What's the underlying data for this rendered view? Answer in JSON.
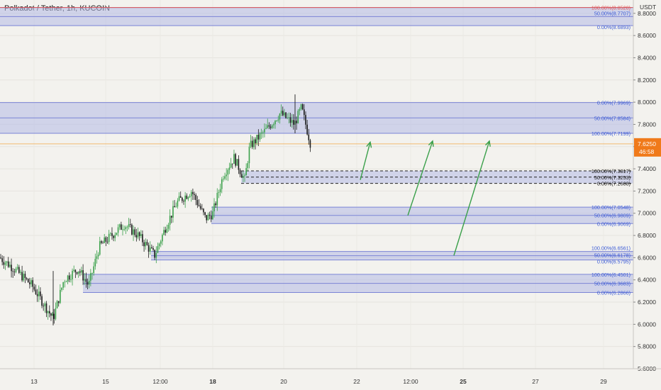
{
  "symbol_title": "Polkadot / Tether, 1h, KUCOIN",
  "axis_currency": "USDT",
  "colors": {
    "background": "#f3f2ee",
    "zone_fill": "#b3b9e6",
    "zone_line": "#7b84d6",
    "fib_text_blue": "#3b5bd6",
    "fib_text_red": "#e05656",
    "fib_text_dark": "#111111",
    "candle_up": "#3aa04a",
    "candle_down": "#1b1b1b",
    "arrow": "#3aa04a",
    "price_line": "#f2a33a",
    "price_label_bg": "#f07a1a"
  },
  "price_label": {
    "price": "7.6250",
    "countdown": "46:58"
  },
  "chart_data": {
    "type": "candlestick",
    "title": "Polkadot / Tether, 1h, KUCOIN",
    "ylabel": "USDT",
    "ylim": [
      5.6,
      8.92
    ],
    "y_ticks": [
      "8.8000",
      "8.6000",
      "8.4000",
      "8.2000",
      "8.0000",
      "7.8000",
      "7.6000",
      "7.4000",
      "7.2000",
      "7.0000",
      "6.8000",
      "6.6000",
      "6.4000",
      "6.2000",
      "6.0000",
      "5.8000",
      "5.6000"
    ],
    "x_ticks": [
      {
        "label": "13",
        "bold": false
      },
      {
        "label": "15",
        "bold": false
      },
      {
        "label": "12:00",
        "bold": false
      },
      {
        "label": "18",
        "bold": true
      },
      {
        "label": "20",
        "bold": false
      },
      {
        "label": "22",
        "bold": false
      },
      {
        "label": "12:00",
        "bold": false
      },
      {
        "label": "25",
        "bold": true
      },
      {
        "label": "27",
        "bold": false
      },
      {
        "label": "29",
        "bold": false
      }
    ],
    "last_price": 7.625,
    "zones": [
      {
        "top": 8.852,
        "bottom": 8.6893,
        "mid": 8.7707,
        "labels": [
          {
            "text": "100.00%(8.8520)",
            "color": "red"
          },
          {
            "text": "50.00%(8.7707)",
            "color": "blue"
          },
          {
            "text": "0.00%(8.6893)",
            "color": "blue"
          }
        ]
      },
      {
        "top": 7.9969,
        "bottom": 7.7199,
        "mid": 7.8584,
        "labels": [
          {
            "text": "0.00%(7.9969)",
            "color": "blue"
          },
          {
            "text": "50.00%(7.8584)",
            "color": "blue"
          },
          {
            "text": "100.00%(7.7199)",
            "color": "blue"
          }
        ]
      },
      {
        "top": 7.3817,
        "bottom": 7.2688,
        "mid": 7.3253,
        "dashed": true,
        "labels": [
          {
            "text": "100.00%(7.3817)",
            "color": "dark"
          },
          {
            "text": "50.00%(7.3253)",
            "color": "dark"
          },
          {
            "text": "0.00%(7.2688)",
            "color": "dark"
          }
        ]
      },
      {
        "top": 7.0548,
        "bottom": 6.9069,
        "mid": 6.9809,
        "labels": [
          {
            "text": "100.00%(7.0548)",
            "color": "blue"
          },
          {
            "text": "50.00%(6.9809)",
            "color": "blue"
          },
          {
            "text": "0.00%(6.9069)",
            "color": "blue"
          }
        ]
      },
      {
        "top": 6.6561,
        "bottom": 6.5795,
        "mid": 6.6178,
        "labels": [
          {
            "text": "100.00%(6.6561)",
            "color": "blue"
          },
          {
            "text": "50.00%(6.6178)",
            "color": "blue"
          },
          {
            "text": "0.00%(6.5795)",
            "color": "blue"
          }
        ]
      },
      {
        "top": 6.4501,
        "bottom": 6.2866,
        "mid": 6.3683,
        "labels": [
          {
            "text": "100.00%(6.4501)",
            "color": "blue"
          },
          {
            "text": "50.00%(6.3683)",
            "color": "blue"
          },
          {
            "text": "0.00%(6.2866)",
            "color": "blue"
          }
        ]
      }
    ],
    "candles": [
      [
        7.3,
        7.41,
        7.27,
        7.33
      ],
      [
        7.34,
        7.42,
        7.28,
        7.36
      ],
      [
        7.35,
        7.45,
        7.3,
        7.4
      ],
      [
        7.35,
        7.46,
        7.3,
        7.39
      ]
    ]
  }
}
